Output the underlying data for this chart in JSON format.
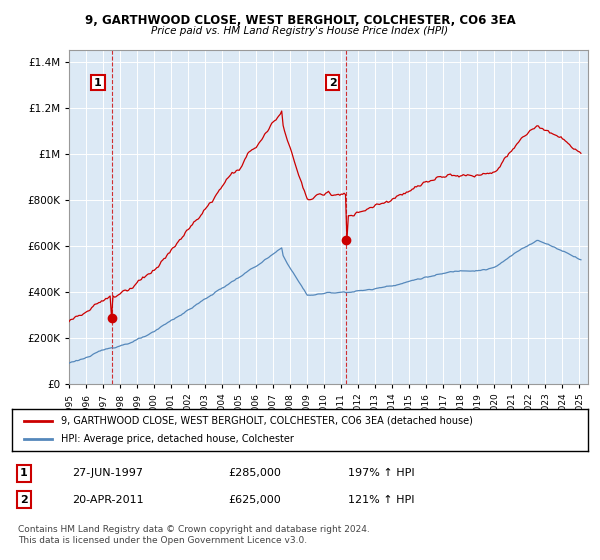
{
  "title": "9, GARTHWOOD CLOSE, WEST BERGHOLT, COLCHESTER, CO6 3EA",
  "subtitle": "Price paid vs. HM Land Registry's House Price Index (HPI)",
  "legend_property": "9, GARTHWOOD CLOSE, WEST BERGHOLT, COLCHESTER, CO6 3EA (detached house)",
  "legend_hpi": "HPI: Average price, detached house, Colchester",
  "sale1_date": "27-JUN-1997",
  "sale1_price": 285000,
  "sale1_x": 1997.5,
  "sale1_pct": "197%",
  "sale2_date": "20-APR-2011",
  "sale2_price": 625000,
  "sale2_x": 2011.3,
  "sale2_pct": "121%",
  "footer": "Contains HM Land Registry data © Crown copyright and database right 2024.\nThis data is licensed under the Open Government Licence v3.0.",
  "property_color": "#cc0000",
  "hpi_color": "#5588bb",
  "background_color": "#dce9f5",
  "grid_color": "#ffffff",
  "ylim": [
    0,
    1450000
  ],
  "xlim_start": 1995.0,
  "xlim_end": 2025.5
}
